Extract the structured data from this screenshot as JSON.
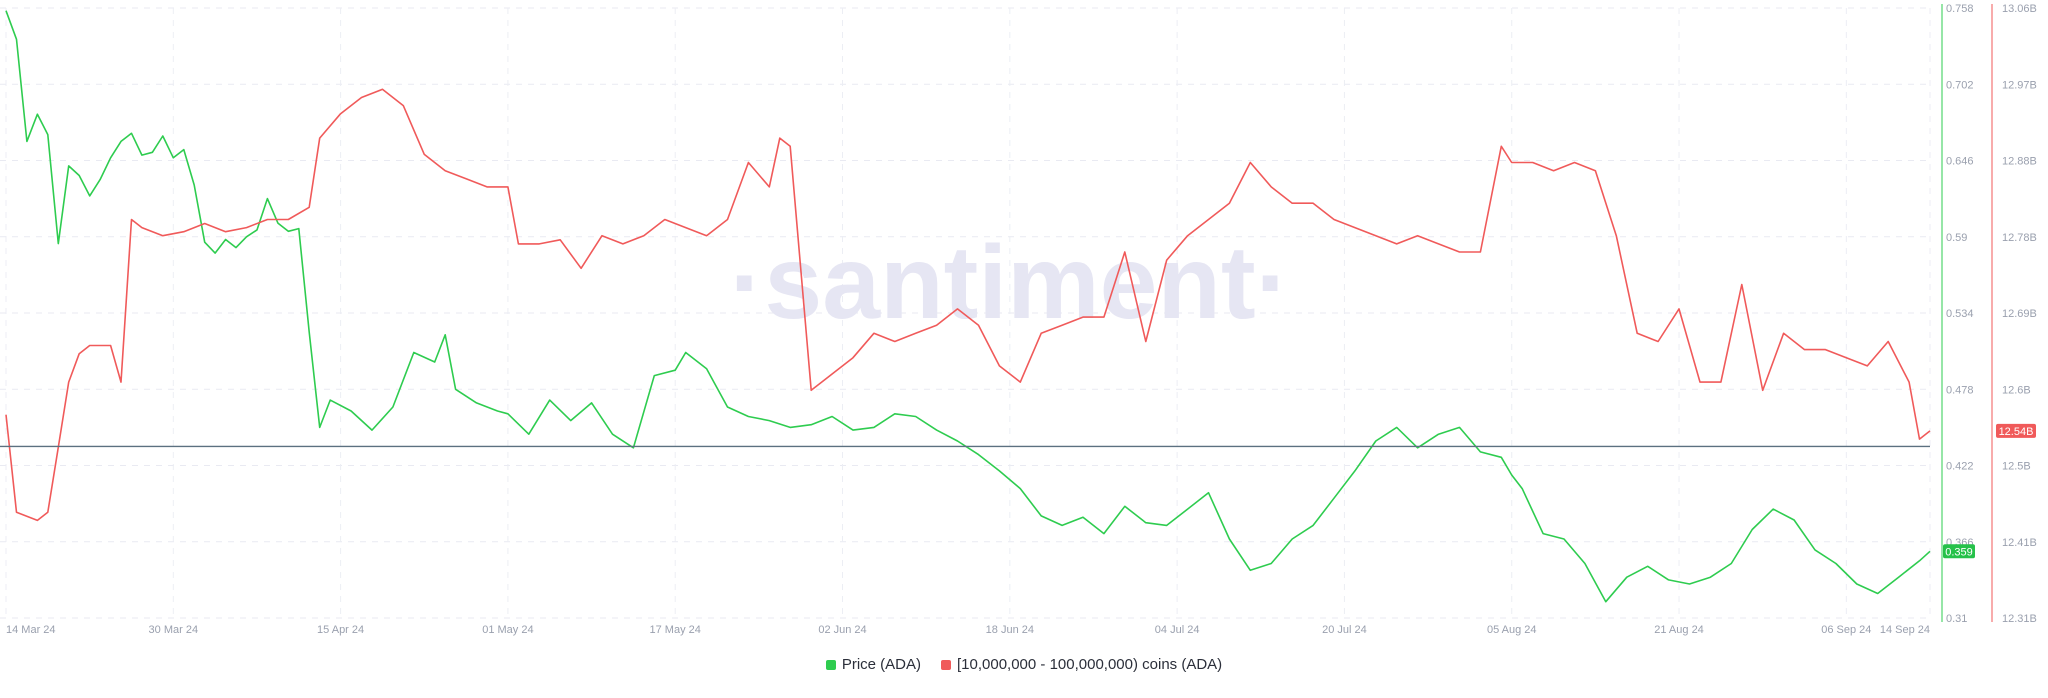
{
  "chart_data": {
    "type": "line",
    "watermark": "·santiment·",
    "x_axis": {
      "ticks": [
        "14 Mar 24",
        "30 Mar 24",
        "15 Apr 24",
        "01 May 24",
        "17 May 24",
        "02 Jun 24",
        "18 Jun 24",
        "04 Jul 24",
        "20 Jul 24",
        "05 Aug 24",
        "21 Aug 24",
        "06 Sep 24",
        "14 Sep 24"
      ]
    },
    "y_axis_left": {
      "label": "",
      "ticks": [
        "0.758",
        "0.702",
        "0.646",
        "0.59",
        "0.534",
        "0.478",
        "0.422",
        "0.366",
        "0.31"
      ],
      "range": [
        0.31,
        0.758
      ]
    },
    "y_axis_right": {
      "label": "",
      "ticks": [
        "13.06B",
        "12.97B",
        "12.88B",
        "12.78B",
        "12.69B",
        "12.6B",
        "12.5B",
        "12.41B",
        "12.31B"
      ],
      "range": [
        12.31,
        13.06
      ]
    },
    "reference_line_price": 0.436,
    "series": [
      {
        "name": "Price (ADA)",
        "color": "#2ecc4f",
        "axis": "left",
        "last_value_label": "0.359",
        "x": [
          "2024-03-14",
          "2024-03-15",
          "2024-03-16",
          "2024-03-17",
          "2024-03-18",
          "2024-03-19",
          "2024-03-20",
          "2024-03-21",
          "2024-03-22",
          "2024-03-23",
          "2024-03-24",
          "2024-03-25",
          "2024-03-26",
          "2024-03-27",
          "2024-03-28",
          "2024-03-29",
          "2024-03-30",
          "2024-03-31",
          "2024-04-01",
          "2024-04-02",
          "2024-04-03",
          "2024-04-04",
          "2024-04-05",
          "2024-04-06",
          "2024-04-07",
          "2024-04-08",
          "2024-04-09",
          "2024-04-10",
          "2024-04-11",
          "2024-04-12",
          "2024-04-13",
          "2024-04-14",
          "2024-04-16",
          "2024-04-18",
          "2024-04-20",
          "2024-04-22",
          "2024-04-24",
          "2024-04-25",
          "2024-04-26",
          "2024-04-28",
          "2024-04-30",
          "2024-05-01",
          "2024-05-03",
          "2024-05-05",
          "2024-05-07",
          "2024-05-09",
          "2024-05-11",
          "2024-05-13",
          "2024-05-15",
          "2024-05-17",
          "2024-05-18",
          "2024-05-20",
          "2024-05-22",
          "2024-05-24",
          "2024-05-26",
          "2024-05-28",
          "2024-05-30",
          "2024-06-01",
          "2024-06-03",
          "2024-06-05",
          "2024-06-07",
          "2024-06-09",
          "2024-06-11",
          "2024-06-13",
          "2024-06-15",
          "2024-06-17",
          "2024-06-19",
          "2024-06-21",
          "2024-06-23",
          "2024-06-25",
          "2024-06-27",
          "2024-06-29",
          "2024-07-01",
          "2024-07-03",
          "2024-07-05",
          "2024-07-07",
          "2024-07-09",
          "2024-07-11",
          "2024-07-13",
          "2024-07-15",
          "2024-07-17",
          "2024-07-19",
          "2024-07-21",
          "2024-07-23",
          "2024-07-25",
          "2024-07-27",
          "2024-07-29",
          "2024-07-31",
          "2024-08-02",
          "2024-08-04",
          "2024-08-05",
          "2024-08-06",
          "2024-08-08",
          "2024-08-10",
          "2024-08-12",
          "2024-08-14",
          "2024-08-16",
          "2024-08-18",
          "2024-08-20",
          "2024-08-22",
          "2024-08-24",
          "2024-08-26",
          "2024-08-28",
          "2024-08-30",
          "2024-09-01",
          "2024-09-03",
          "2024-09-05",
          "2024-09-07",
          "2024-09-09",
          "2024-09-11",
          "2024-09-13",
          "2024-09-14"
        ],
        "values": [
          0.756,
          0.735,
          0.66,
          0.68,
          0.665,
          0.585,
          0.642,
          0.635,
          0.62,
          0.632,
          0.648,
          0.66,
          0.666,
          0.65,
          0.652,
          0.664,
          0.648,
          0.654,
          0.628,
          0.586,
          0.578,
          0.588,
          0.582,
          0.59,
          0.595,
          0.618,
          0.6,
          0.594,
          0.596,
          0.52,
          0.45,
          0.47,
          0.462,
          0.448,
          0.465,
          0.505,
          0.498,
          0.518,
          0.478,
          0.468,
          0.462,
          0.46,
          0.445,
          0.47,
          0.455,
          0.468,
          0.445,
          0.435,
          0.488,
          0.492,
          0.505,
          0.493,
          0.465,
          0.458,
          0.455,
          0.45,
          0.452,
          0.458,
          0.448,
          0.45,
          0.46,
          0.458,
          0.448,
          0.44,
          0.43,
          0.418,
          0.405,
          0.385,
          0.378,
          0.384,
          0.372,
          0.392,
          0.38,
          0.378,
          0.39,
          0.402,
          0.368,
          0.345,
          0.35,
          0.368,
          0.378,
          0.398,
          0.418,
          0.44,
          0.45,
          0.435,
          0.445,
          0.45,
          0.432,
          0.428,
          0.415,
          0.405,
          0.372,
          0.368,
          0.35,
          0.322,
          0.34,
          0.348,
          0.338,
          0.335,
          0.34,
          0.35,
          0.375,
          0.39,
          0.382,
          0.36,
          0.35,
          0.335,
          0.328,
          0.34,
          0.352,
          0.359
        ]
      },
      {
        "name": "[10,000,000 - 100,000,000) coins (ADA)",
        "color": "#f05a5a",
        "axis": "right",
        "last_value_label": "12.54B",
        "x": [
          "2024-03-14",
          "2024-03-15",
          "2024-03-17",
          "2024-03-18",
          "2024-03-19",
          "2024-03-20",
          "2024-03-21",
          "2024-03-22",
          "2024-03-24",
          "2024-03-25",
          "2024-03-26",
          "2024-03-27",
          "2024-03-29",
          "2024-03-31",
          "2024-04-02",
          "2024-04-04",
          "2024-04-06",
          "2024-04-08",
          "2024-04-10",
          "2024-04-12",
          "2024-04-13",
          "2024-04-15",
          "2024-04-17",
          "2024-04-19",
          "2024-04-21",
          "2024-04-23",
          "2024-04-25",
          "2024-04-27",
          "2024-04-29",
          "2024-05-01",
          "2024-05-02",
          "2024-05-04",
          "2024-05-06",
          "2024-05-08",
          "2024-05-10",
          "2024-05-12",
          "2024-05-14",
          "2024-05-16",
          "2024-05-18",
          "2024-05-20",
          "2024-05-22",
          "2024-05-24",
          "2024-05-26",
          "2024-05-27",
          "2024-05-28",
          "2024-05-30",
          "2024-06-01",
          "2024-06-03",
          "2024-06-05",
          "2024-06-07",
          "2024-06-09",
          "2024-06-11",
          "2024-06-13",
          "2024-06-15",
          "2024-06-17",
          "2024-06-19",
          "2024-06-21",
          "2024-06-23",
          "2024-06-25",
          "2024-06-27",
          "2024-06-29",
          "2024-07-01",
          "2024-07-03",
          "2024-07-05",
          "2024-07-07",
          "2024-07-09",
          "2024-07-11",
          "2024-07-13",
          "2024-07-15",
          "2024-07-17",
          "2024-07-19",
          "2024-07-21",
          "2024-07-23",
          "2024-07-25",
          "2024-07-27",
          "2024-07-29",
          "2024-07-31",
          "2024-08-02",
          "2024-08-04",
          "2024-08-05",
          "2024-08-07",
          "2024-08-09",
          "2024-08-11",
          "2024-08-13",
          "2024-08-15",
          "2024-08-17",
          "2024-08-19",
          "2024-08-21",
          "2024-08-23",
          "2024-08-25",
          "2024-08-27",
          "2024-08-29",
          "2024-08-31",
          "2024-09-02",
          "2024-09-04",
          "2024-09-06",
          "2024-09-08",
          "2024-09-10",
          "2024-09-12",
          "2024-09-13",
          "2024-09-14"
        ],
        "values": [
          12.56,
          12.44,
          12.43,
          12.44,
          12.52,
          12.6,
          12.635,
          12.645,
          12.645,
          12.6,
          12.8,
          12.79,
          12.78,
          12.785,
          12.795,
          12.785,
          12.79,
          12.8,
          12.8,
          12.815,
          12.9,
          12.93,
          12.95,
          12.96,
          12.94,
          12.88,
          12.86,
          12.85,
          12.84,
          12.84,
          12.77,
          12.77,
          12.775,
          12.74,
          12.78,
          12.77,
          12.78,
          12.8,
          12.79,
          12.78,
          12.8,
          12.87,
          12.84,
          12.9,
          12.89,
          12.59,
          12.61,
          12.63,
          12.66,
          12.65,
          12.66,
          12.67,
          12.69,
          12.67,
          12.62,
          12.6,
          12.66,
          12.67,
          12.68,
          12.68,
          12.76,
          12.65,
          12.75,
          12.78,
          12.8,
          12.82,
          12.87,
          12.84,
          12.82,
          12.82,
          12.8,
          12.79,
          12.78,
          12.77,
          12.78,
          12.77,
          12.76,
          12.76,
          12.89,
          12.87,
          12.87,
          12.86,
          12.87,
          12.86,
          12.78,
          12.66,
          12.65,
          12.69,
          12.6,
          12.6,
          12.72,
          12.59,
          12.66,
          12.64,
          12.64,
          12.63,
          12.62,
          12.65,
          12.6,
          12.53,
          12.54
        ]
      }
    ],
    "legend": {
      "placement": "bottom-center"
    },
    "grid": true
  }
}
